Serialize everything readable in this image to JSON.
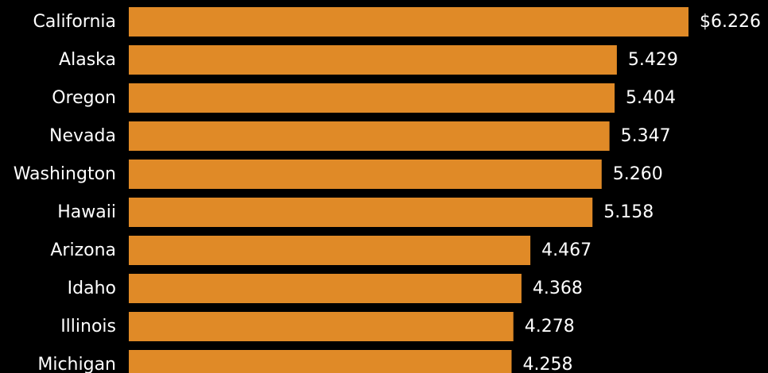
{
  "colors": {
    "background": "#000000",
    "bar": "#E08A27",
    "text": "#FFFFFF"
  },
  "chart_data": {
    "type": "bar",
    "orientation": "horizontal",
    "categories": [
      "California",
      "Alaska",
      "Oregon",
      "Nevada",
      "Washington",
      "Hawaii",
      "Arizona",
      "Idaho",
      "Illinois",
      "Michigan"
    ],
    "values": [
      6.226,
      5.429,
      5.404,
      5.347,
      5.26,
      5.158,
      4.467,
      4.368,
      4.278,
      4.258
    ],
    "value_labels": [
      "$6.226",
      "5.429",
      "5.404",
      "5.347",
      "5.260",
      "5.158",
      "4.467",
      "4.368",
      "4.278",
      "4.258"
    ],
    "xlim": [
      0,
      6.226
    ],
    "grid": false,
    "legend": "none"
  }
}
